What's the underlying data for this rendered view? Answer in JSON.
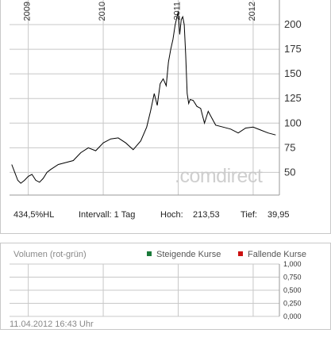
{
  "chart_data": [
    {
      "type": "line",
      "title": "",
      "x_range_years": [
        2008.75,
        2012.35
      ],
      "year_markers": [
        "2009",
        "2010",
        "2011",
        "2012"
      ],
      "y_ticks": [
        "200",
        "175",
        "150",
        "125",
        "100",
        "75",
        "50"
      ],
      "ylim": [
        27,
        225
      ],
      "grid": true,
      "line_color": "#000000",
      "series": [
        {
          "x": [
            2008.78,
            2008.82,
            2008.86,
            2008.9,
            2008.95,
            2009.0,
            2009.05,
            2009.1,
            2009.15,
            2009.2,
            2009.25,
            2009.3,
            2009.4,
            2009.5,
            2009.6,
            2009.7,
            2009.8,
            2009.9,
            2010.0,
            2010.1,
            2010.2,
            2010.3,
            2010.4,
            2010.5,
            2010.58,
            2010.63,
            2010.68,
            2010.72,
            2010.76,
            2010.8,
            2010.84,
            2010.87,
            2010.9,
            2010.93,
            2010.96,
            2011.0,
            2011.02,
            2011.04,
            2011.06,
            2011.08,
            2011.1,
            2011.12,
            2011.14,
            2011.16,
            2011.2,
            2011.25,
            2011.3,
            2011.35,
            2011.4,
            2011.45,
            2011.5,
            2011.6,
            2011.7,
            2011.8,
            2011.9,
            2012.0,
            2012.1,
            2012.2,
            2012.3
          ],
          "y": [
            58,
            50,
            42,
            39,
            42,
            46,
            48,
            42,
            40,
            44,
            50,
            53,
            58,
            60,
            62,
            70,
            75,
            72,
            80,
            84,
            85,
            80,
            73,
            82,
            96,
            112,
            130,
            118,
            140,
            145,
            138,
            162,
            175,
            185,
            200,
            213,
            190,
            205,
            208,
            200,
            170,
            130,
            120,
            124,
            123,
            117,
            115,
            100,
            112,
            105,
            98,
            96,
            94,
            90,
            95,
            96,
            93,
            90,
            88
          ]
        }
      ]
    },
    {
      "type": "bar",
      "title": "Volumen (rot-grün)",
      "legend": [
        "Steigende Kurse",
        "Fallende Kurse"
      ],
      "legend_colors": [
        "#1a7a3a",
        "#cc1111"
      ],
      "y_ticks": [
        "1,000",
        "0,750",
        "0,500",
        "0,250",
        "0,000"
      ],
      "ylim": [
        0,
        1
      ],
      "grid": true,
      "values": []
    }
  ],
  "stats": {
    "perf": "434,5%HL",
    "interval": "Intervall: 1 Tag",
    "high_label": "Hoch:",
    "high_value": "213,53",
    "low_label": "Tief:",
    "low_value": "39,95"
  },
  "watermark": ".comdirect",
  "timestamp": "11.04.2012 16:43 Uhr"
}
